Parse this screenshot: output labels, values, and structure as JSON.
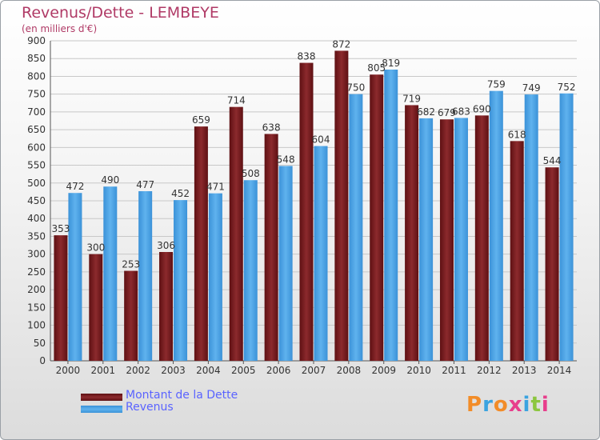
{
  "header": {
    "title": "Revenus/Dette - LEMBEYE",
    "subtitle": "(en milliers d'€)"
  },
  "legend": [
    {
      "label": "Montant de la Dette",
      "color": "#7a1c1f"
    },
    {
      "label": "Revenus",
      "color": "#4aa3e6"
    }
  ],
  "logo": {
    "text": "Proxiti",
    "colors": [
      "#f28c28",
      "#3aa3e0",
      "#f28c28",
      "#e83e8c",
      "#3aa3e0",
      "#8cc63f",
      "#e83e8c"
    ]
  },
  "chart_data": {
    "type": "bar",
    "categories": [
      "2000",
      "2001",
      "2002",
      "2003",
      "2004",
      "2005",
      "2006",
      "2007",
      "2008",
      "2009",
      "2010",
      "2011",
      "2012",
      "2013",
      "2014"
    ],
    "series": [
      {
        "name": "Montant de la Dette",
        "color": "#7a1c1f",
        "values": [
          353,
          300,
          253,
          306,
          659,
          714,
          638,
          838,
          872,
          805,
          719,
          679,
          690,
          618,
          544
        ]
      },
      {
        "name": "Revenus",
        "color": "#4aa3e6",
        "values": [
          472,
          490,
          477,
          452,
          471,
          508,
          548,
          604,
          750,
          819,
          682,
          683,
          759,
          749,
          752
        ]
      }
    ],
    "title": "Revenus/Dette - LEMBEYE",
    "ylabel": "(en milliers d'€)",
    "ylim": [
      0,
      900
    ],
    "yticks": [
      0,
      50,
      100,
      150,
      200,
      250,
      300,
      350,
      400,
      450,
      500,
      550,
      600,
      650,
      700,
      750,
      800,
      850,
      900
    ],
    "grid": true,
    "legend_position": "bottom-left"
  }
}
